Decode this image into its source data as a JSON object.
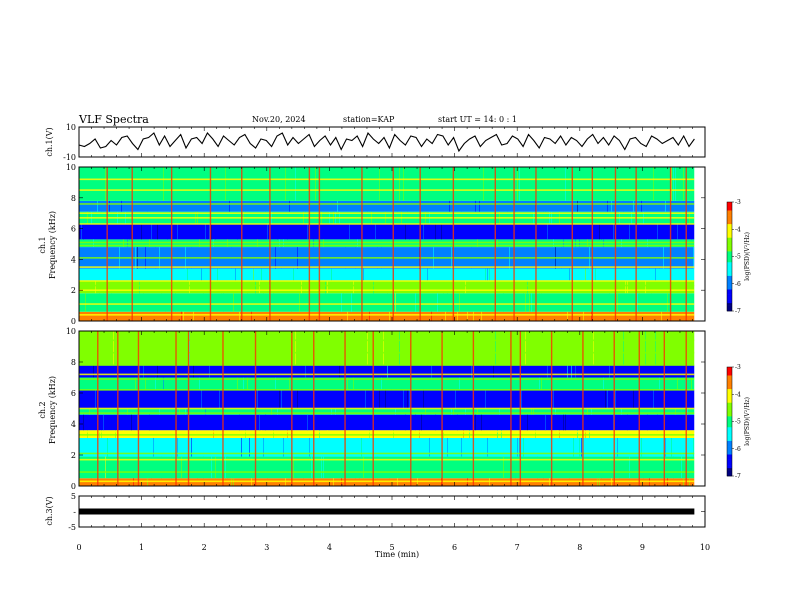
{
  "header": {
    "title": "VLF Spectra",
    "date": "Nov.20, 2024",
    "station": "station=KAP",
    "start": "start  UT =  14: 0  : 1"
  },
  "chart_data": [
    {
      "type": "line",
      "name": "ch1-waveform",
      "ylabel": "ch.1(V)",
      "ylim": [
        -10,
        10
      ],
      "y_ticks": [
        "10",
        "-10"
      ],
      "xlim": [
        0,
        10
      ],
      "x_end": 9.83,
      "samples": [
        -2,
        -3,
        -1,
        2,
        -4,
        -3,
        1,
        -2,
        3,
        4,
        -1,
        -5,
        2,
        3,
        6,
        -2,
        4,
        -3,
        1,
        5,
        -4,
        2,
        3,
        -1,
        6,
        2,
        -3,
        4,
        1,
        -2,
        3,
        5,
        -1,
        -4,
        2,
        1,
        -3,
        4,
        6,
        -2,
        3,
        -1,
        2,
        5,
        -3,
        1,
        4,
        -2,
        3,
        -5,
        2,
        1,
        4,
        -3,
        6,
        2,
        -1,
        3,
        -4,
        5,
        1,
        -2,
        4,
        3,
        -3,
        2,
        -1,
        5,
        4,
        -2,
        3,
        -6,
        -1,
        2,
        4,
        -3,
        1,
        3,
        5,
        -2,
        -1,
        4,
        2,
        -3,
        5,
        1,
        -4,
        3,
        2,
        -1,
        4,
        -2,
        3,
        1,
        -3,
        2,
        5,
        -1,
        3,
        -2,
        4,
        1,
        -5,
        2,
        3,
        -1,
        -3,
        4,
        2,
        -1,
        1,
        3,
        -2,
        4,
        -3,
        2
      ]
    },
    {
      "type": "heatmap",
      "name": "ch1-spectrogram",
      "ylabel": "ch.1\nFrequency (kHz)",
      "ylim": [
        0,
        10
      ],
      "y_ticks": [
        "10",
        "8",
        "6",
        "4",
        "2",
        "0"
      ],
      "xlim": [
        0,
        10
      ],
      "x_end": 9.83,
      "z_range": [
        -7,
        -3
      ],
      "colorbar": {
        "label": "log(PSD)(V²/Hz)",
        "ticks": [
          "-3",
          "-4",
          "-5",
          "-6",
          "-7"
        ]
      },
      "bands": [
        {
          "lo": 0,
          "hi": 0.6,
          "level": -3.6
        },
        {
          "lo": 0.6,
          "hi": 1.8,
          "level": -4.9
        },
        {
          "lo": 1.8,
          "hi": 2.6,
          "level": -4.4
        },
        {
          "lo": 2.6,
          "hi": 3.4,
          "level": -5.4
        },
        {
          "lo": 3.4,
          "hi": 4.8,
          "level": -6.1
        },
        {
          "lo": 4.8,
          "hi": 5.3,
          "level": -5.2
        },
        {
          "lo": 5.3,
          "hi": 6.3,
          "level": -6.5
        },
        {
          "lo": 6.3,
          "hi": 7.1,
          "level": -5.0
        },
        {
          "lo": 7.1,
          "hi": 7.8,
          "level": -6.1
        },
        {
          "lo": 7.8,
          "hi": 10,
          "level": -4.9
        }
      ],
      "tones_khz": [
        0.4,
        1.1,
        2.0,
        2.3,
        2.6,
        3.5,
        4.1,
        4.9,
        5.1,
        6.3,
        6.7,
        7.0,
        7.6,
        8.5,
        9.2
      ],
      "spikes_min": [
        0.45,
        0.85,
        1.48,
        2.1,
        2.6,
        3.05,
        3.68,
        3.84,
        4.52,
        5.02,
        5.45,
        5.98,
        6.65,
        6.95,
        7.3,
        7.88,
        8.2,
        8.57,
        8.9,
        9.45,
        9.7
      ]
    },
    {
      "type": "heatmap",
      "name": "ch2-spectrogram",
      "ylabel": "ch.2\nFrequency (kHz)",
      "ylim": [
        0,
        10
      ],
      "y_ticks": [
        "10",
        "8",
        "6",
        "4",
        "2",
        "0"
      ],
      "xlim": [
        0,
        10
      ],
      "x_end": 9.83,
      "z_range": [
        -7,
        -3
      ],
      "colorbar": {
        "label": "log(PSD)(V²/Hz)",
        "ticks": [
          "-3",
          "-4",
          "-5",
          "-6",
          "-7"
        ]
      },
      "bands": [
        {
          "lo": 0,
          "hi": 0.5,
          "level": -3.7
        },
        {
          "lo": 0.5,
          "hi": 1.9,
          "level": -4.8
        },
        {
          "lo": 1.9,
          "hi": 3.1,
          "level": -5.7
        },
        {
          "lo": 3.1,
          "hi": 3.6,
          "level": -4.2
        },
        {
          "lo": 3.6,
          "hi": 4.6,
          "level": -6.6
        },
        {
          "lo": 4.6,
          "hi": 5.0,
          "level": -5.1
        },
        {
          "lo": 5.0,
          "hi": 6.2,
          "level": -6.4
        },
        {
          "lo": 6.2,
          "hi": 7.0,
          "level": -5.1
        },
        {
          "lo": 7.0,
          "hi": 7.8,
          "level": -6.3
        },
        {
          "lo": 7.8,
          "hi": 10,
          "level": -4.7
        }
      ],
      "tones_khz": [
        0.3,
        0.9,
        1.7,
        2.1,
        3.3,
        3.5,
        4.7,
        5.0,
        6.2,
        6.9,
        7.2,
        7.8,
        8.6,
        9.4
      ],
      "spikes_min": [
        0.3,
        0.62,
        0.95,
        1.55,
        1.75,
        2.3,
        2.82,
        3.4,
        3.75,
        4.25,
        4.7,
        5.3,
        5.8,
        6.3,
        6.9,
        7.05,
        7.55,
        8.05,
        8.55,
        8.95,
        9.35,
        9.7
      ]
    },
    {
      "type": "line",
      "name": "ch3-waveform",
      "ylabel": "ch.3(V)",
      "ylim": [
        -5,
        5
      ],
      "y_ticks": [
        "5",
        "-",
        "-5"
      ],
      "xlim": [
        0,
        10
      ],
      "x_end": 9.83,
      "level": 0,
      "xlabel": "Time (min)",
      "x_ticks": [
        "0",
        "1",
        "2",
        "3",
        "4",
        "5",
        "6",
        "7",
        "8",
        "9",
        "10"
      ]
    }
  ],
  "colors": {
    "ink": "#000000",
    "colormap": [
      "#000080",
      "#0000ff",
      "#0080ff",
      "#00ffff",
      "#00ff80",
      "#80ff00",
      "#ffff00",
      "#ff8000",
      "#ff0000",
      "#ffffff"
    ]
  }
}
